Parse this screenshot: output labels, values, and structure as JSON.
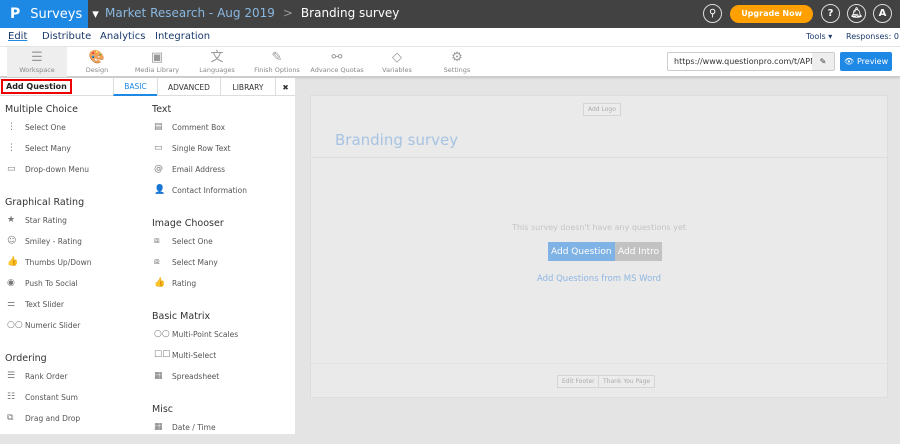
{
  "topbar": {
    "logo": "P",
    "app": "Surveys",
    "crumb_parent": "Market Research - Aug 2019",
    "crumb_sep": ">",
    "crumb_current": "Branding survey",
    "upgrade": "Upgrade Now",
    "help": "?",
    "avatar": "A"
  },
  "nav": {
    "tabs": [
      "Edit",
      "Distribute",
      "Analytics",
      "Integration"
    ],
    "tools": "Tools ▾",
    "responses": "Responses: 0"
  },
  "toolbar": {
    "items": [
      {
        "label": "Workspace",
        "icon": "☰"
      },
      {
        "label": "Design",
        "icon": "🎨"
      },
      {
        "label": "Media Library",
        "icon": "▣"
      },
      {
        "label": "Languages",
        "icon": "文"
      },
      {
        "label": "Finish Options",
        "icon": "✎"
      },
      {
        "label": "Advance Quotas",
        "icon": "⚯"
      },
      {
        "label": "Variables",
        "icon": "◇"
      },
      {
        "label": "Settings",
        "icon": "⚙"
      }
    ],
    "url": "https://www.questionpro.com/t/APNrFZ",
    "preview": "Preview"
  },
  "panel": {
    "title": "Add Question",
    "tabs": [
      "BASIC",
      "ADVANCED",
      "LIBRARY"
    ],
    "close": "✖",
    "col1": [
      {
        "heading": "Multiple Choice",
        "items": [
          {
            "l": "Select One",
            "i": "⋮"
          },
          {
            "l": "Select Many",
            "i": "⋮"
          },
          {
            "l": "Drop-down Menu",
            "i": "▭"
          }
        ]
      },
      {
        "heading": "Graphical Rating",
        "items": [
          {
            "l": "Star Rating",
            "i": "★"
          },
          {
            "l": "Smiley - Rating",
            "i": "☺"
          },
          {
            "l": "Thumbs Up/Down",
            "i": "👍"
          },
          {
            "l": "Push To Social",
            "i": "◉"
          },
          {
            "l": "Text Slider",
            "i": "⚌"
          },
          {
            "l": "Numeric Slider",
            "i": "○○"
          }
        ]
      },
      {
        "heading": "Ordering",
        "items": [
          {
            "l": "Rank Order",
            "i": "☰"
          },
          {
            "l": "Constant Sum",
            "i": "☷"
          },
          {
            "l": "Drag and Drop",
            "i": "⧉"
          }
        ]
      }
    ],
    "col2": [
      {
        "heading": "Text",
        "items": [
          {
            "l": "Comment Box",
            "i": "▤"
          },
          {
            "l": "Single Row Text",
            "i": "▭"
          },
          {
            "l": "Email Address",
            "i": "@"
          },
          {
            "l": "Contact Information",
            "i": "👤"
          }
        ]
      },
      {
        "heading": "Image Chooser",
        "items": [
          {
            "l": "Select One",
            "i": "⧈"
          },
          {
            "l": "Select Many",
            "i": "⧈"
          },
          {
            "l": "Rating",
            "i": "👍"
          }
        ]
      },
      {
        "heading": "Basic Matrix",
        "items": [
          {
            "l": "Multi-Point Scales",
            "i": "○○"
          },
          {
            "l": "Multi-Select",
            "i": "☐☐"
          },
          {
            "l": "Spreadsheet",
            "i": "▦"
          }
        ]
      },
      {
        "heading": "Misc",
        "items": [
          {
            "l": "Date / Time",
            "i": "▦"
          }
        ]
      }
    ]
  },
  "canvas": {
    "add_logo": "Add Logo",
    "title": "Branding survey",
    "empty": "This survey doesn't have any questions yet",
    "add_question": "Add Question",
    "add_intro": "Add Intro",
    "ms_word": "Add Questions from MS Word",
    "edit_footer": "Edit Footer",
    "thank_you": "Thank You Page"
  },
  "colors": {
    "brand": "#1e88e5",
    "topbar": "#424242",
    "upgrade": "#ffa000"
  }
}
